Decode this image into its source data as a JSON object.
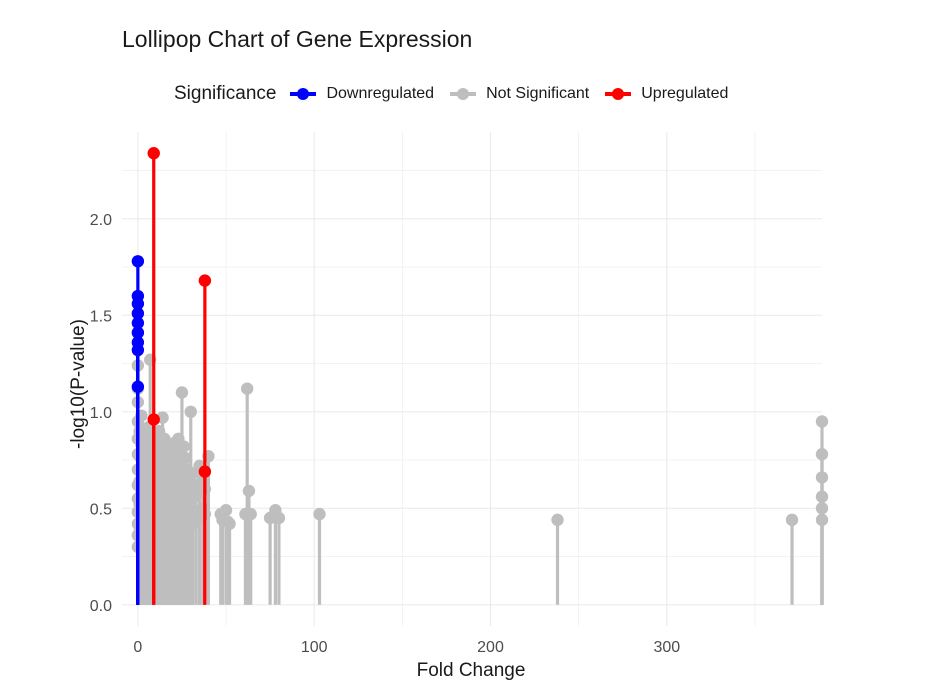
{
  "chart_data": {
    "type": "lollipop",
    "title": "Lollipop Chart of Gene Expression",
    "xlabel": "Fold Change",
    "ylabel": "-log10(P-value)",
    "xlim": [
      -9,
      388
    ],
    "ylim": [
      -0.11,
      2.45
    ],
    "x_ticks": [
      0,
      100,
      200,
      300
    ],
    "x_tick_labels": [
      "0",
      "100",
      "200",
      "300"
    ],
    "y_ticks": [
      0.0,
      0.5,
      1.0,
      1.5,
      2.0
    ],
    "y_tick_labels": [
      "0.0",
      "0.5",
      "1.0",
      "1.5",
      "2.0"
    ],
    "grid": true,
    "legend": {
      "title": "Significance",
      "placement": "top",
      "entries": [
        {
          "label": "Downregulated",
          "color": "#0000ff"
        },
        {
          "label": "Not Significant",
          "color": "#bebebe"
        },
        {
          "label": "Upregulated",
          "color": "#ff0000"
        }
      ]
    },
    "series": [
      {
        "name": "Not Significant",
        "color": "#bebebe",
        "points": [
          [
            0,
            0.3
          ],
          [
            0,
            0.36
          ],
          [
            0,
            0.42
          ],
          [
            0,
            0.48
          ],
          [
            0,
            0.55
          ],
          [
            0,
            0.62
          ],
          [
            0,
            0.7
          ],
          [
            0,
            0.78
          ],
          [
            0,
            0.86
          ],
          [
            0,
            0.95
          ],
          [
            0,
            1.05
          ],
          [
            0,
            1.12
          ],
          [
            0,
            1.24
          ],
          [
            1,
            0.4
          ],
          [
            1,
            0.52
          ],
          [
            1,
            0.64
          ],
          [
            1,
            0.77
          ],
          [
            1,
            0.9
          ],
          [
            2,
            0.46
          ],
          [
            2,
            0.58
          ],
          [
            2,
            0.7
          ],
          [
            2,
            0.83
          ],
          [
            2,
            0.98
          ],
          [
            3,
            0.38
          ],
          [
            3,
            0.5
          ],
          [
            3,
            0.6
          ],
          [
            3,
            0.75
          ],
          [
            3,
            0.88
          ],
          [
            4,
            0.44
          ],
          [
            4,
            0.56
          ],
          [
            4,
            0.68
          ],
          [
            4,
            0.8
          ],
          [
            5,
            0.48
          ],
          [
            5,
            0.6
          ],
          [
            5,
            0.72
          ],
          [
            5,
            0.85
          ],
          [
            6,
            0.42
          ],
          [
            6,
            0.55
          ],
          [
            6,
            0.66
          ],
          [
            6,
            0.78
          ],
          [
            6,
            0.92
          ],
          [
            7,
            0.5
          ],
          [
            7,
            0.62
          ],
          [
            7,
            1.27
          ],
          [
            8,
            0.45
          ],
          [
            8,
            0.58
          ],
          [
            8,
            0.7
          ],
          [
            8,
            0.83
          ],
          [
            9,
            0.4
          ],
          [
            9,
            0.52
          ],
          [
            9,
            0.64
          ],
          [
            9,
            0.76
          ],
          [
            10,
            0.47
          ],
          [
            10,
            0.6
          ],
          [
            10,
            0.72
          ],
          [
            10,
            0.88
          ],
          [
            11,
            0.43
          ],
          [
            11,
            0.56
          ],
          [
            11,
            0.68
          ],
          [
            11,
            0.8
          ],
          [
            12,
            0.49
          ],
          [
            12,
            0.61
          ],
          [
            12,
            0.74
          ],
          [
            12,
            0.9
          ],
          [
            13,
            0.45
          ],
          [
            13,
            0.57
          ],
          [
            13,
            0.7
          ],
          [
            13,
            0.84
          ],
          [
            14,
            0.41
          ],
          [
            14,
            0.54
          ],
          [
            14,
            0.66
          ],
          [
            14,
            0.97
          ],
          [
            15,
            0.47
          ],
          [
            15,
            0.6
          ],
          [
            15,
            0.72
          ],
          [
            15,
            0.86
          ],
          [
            16,
            0.43
          ],
          [
            16,
            0.55
          ],
          [
            16,
            0.68
          ],
          [
            16,
            0.82
          ],
          [
            17,
            0.48
          ],
          [
            17,
            0.62
          ],
          [
            17,
            0.76
          ],
          [
            18,
            0.44
          ],
          [
            18,
            0.57
          ],
          [
            18,
            0.7
          ],
          [
            18,
            0.8
          ],
          [
            19,
            0.4
          ],
          [
            19,
            0.52
          ],
          [
            19,
            0.66
          ],
          [
            19,
            0.78
          ],
          [
            20,
            0.46
          ],
          [
            20,
            0.6
          ],
          [
            20,
            0.74
          ],
          [
            21,
            0.42
          ],
          [
            21,
            0.56
          ],
          [
            21,
            0.7
          ],
          [
            21,
            0.84
          ],
          [
            22,
            0.48
          ],
          [
            22,
            0.62
          ],
          [
            22,
            0.75
          ],
          [
            23,
            0.44
          ],
          [
            23,
            0.58
          ],
          [
            23,
            0.72
          ],
          [
            23,
            0.86
          ],
          [
            24,
            0.5
          ],
          [
            24,
            0.64
          ],
          [
            24,
            0.78
          ],
          [
            25,
            0.46
          ],
          [
            25,
            1.1
          ],
          [
            26,
            0.42
          ],
          [
            26,
            0.56
          ],
          [
            26,
            0.7
          ],
          [
            26,
            0.82
          ],
          [
            27,
            0.48
          ],
          [
            27,
            0.62
          ],
          [
            27,
            0.76
          ],
          [
            28,
            0.44
          ],
          [
            28,
            0.58
          ],
          [
            28,
            0.7
          ],
          [
            29,
            0.5
          ],
          [
            29,
            0.64
          ],
          [
            30,
            0.46
          ],
          [
            30,
            0.6
          ],
          [
            30,
            1.0
          ],
          [
            31,
            0.42
          ],
          [
            31,
            0.55
          ],
          [
            31,
            0.68
          ],
          [
            33,
            0.48
          ],
          [
            33,
            0.62
          ],
          [
            35,
            0.45
          ],
          [
            35,
            0.58
          ],
          [
            35,
            0.72
          ],
          [
            37,
            0.5
          ],
          [
            37,
            0.66
          ],
          [
            38,
            0.47
          ],
          [
            38,
            0.6
          ],
          [
            40,
            0.77
          ],
          [
            47,
            0.47
          ],
          [
            48,
            0.44
          ],
          [
            50,
            0.49
          ],
          [
            51,
            0.43
          ],
          [
            52,
            0.42
          ],
          [
            61,
            0.47
          ],
          [
            62,
            1.12
          ],
          [
            63,
            0.59
          ],
          [
            64,
            0.47
          ],
          [
            75,
            0.45
          ],
          [
            78,
            0.49
          ],
          [
            80,
            0.45
          ],
          [
            103,
            0.47
          ],
          [
            238,
            0.44
          ],
          [
            371,
            0.44
          ],
          [
            388,
            0.44
          ],
          [
            388,
            0.5
          ],
          [
            388,
            0.56
          ],
          [
            388,
            0.66
          ],
          [
            388,
            0.78
          ],
          [
            388,
            0.95
          ]
        ]
      },
      {
        "name": "Downregulated",
        "color": "#0000ff",
        "points": [
          [
            0,
            1.13
          ],
          [
            0,
            1.32
          ],
          [
            0,
            1.36
          ],
          [
            0,
            1.41
          ],
          [
            0,
            1.46
          ],
          [
            0,
            1.51
          ],
          [
            0,
            1.56
          ],
          [
            0,
            1.6
          ],
          [
            0,
            1.78
          ]
        ]
      },
      {
        "name": "Upregulated",
        "color": "#ff0000",
        "points": [
          [
            9,
            0.96
          ],
          [
            9,
            2.34
          ],
          [
            38,
            0.69
          ],
          [
            38,
            1.68
          ]
        ]
      }
    ]
  }
}
